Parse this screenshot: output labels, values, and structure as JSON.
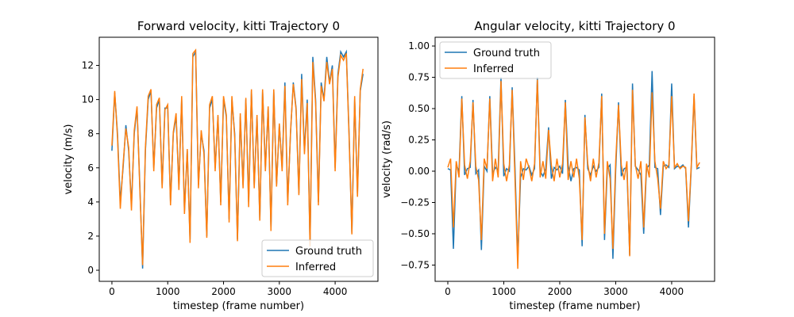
{
  "chart_data": [
    {
      "type": "line",
      "title": "Forward velocity, kitti Trajectory 0",
      "x_label": "timestep (frame number)",
      "y_label": "velocity (m/s)",
      "x": [
        0,
        50,
        100,
        150,
        200,
        250,
        300,
        350,
        400,
        450,
        500,
        550,
        600,
        650,
        700,
        750,
        800,
        850,
        900,
        950,
        1000,
        1050,
        1100,
        1150,
        1200,
        1250,
        1300,
        1350,
        1400,
        1450,
        1500,
        1550,
        1600,
        1650,
        1700,
        1750,
        1800,
        1850,
        1900,
        1950,
        2000,
        2050,
        2100,
        2150,
        2200,
        2250,
        2300,
        2350,
        2400,
        2450,
        2500,
        2550,
        2600,
        2650,
        2700,
        2750,
        2800,
        2850,
        2900,
        2950,
        3000,
        3050,
        3100,
        3150,
        3200,
        3250,
        3300,
        3350,
        3400,
        3450,
        3500,
        3550,
        3600,
        3650,
        3700,
        3750,
        3800,
        3850,
        3900,
        3950,
        4000,
        4050,
        4100,
        4150,
        4200,
        4250,
        4300,
        4350,
        4400,
        4450,
        4500
      ],
      "series": [
        {
          "name": "Ground truth",
          "color": "#1f77b4",
          "values": [
            7,
            10.4,
            8,
            4,
            6,
            8.5,
            7,
            3.8,
            8,
            9.5,
            5,
            0.1,
            7,
            10,
            10.5,
            6,
            9.5,
            10,
            5,
            9.5,
            9.5,
            4,
            8,
            9,
            5,
            10,
            3.5,
            7,
            1.8,
            12.5,
            12.8,
            5,
            8,
            7,
            2,
            9.5,
            10,
            6,
            9,
            4,
            10,
            9,
            3,
            10,
            8,
            1.8,
            9,
            5,
            10,
            4,
            10.5,
            5,
            9,
            3,
            10.5,
            6,
            9.5,
            2.5,
            10.5,
            5,
            8.5,
            6,
            11,
            4,
            8,
            11,
            9.5,
            4.5,
            11.5,
            7,
            10,
            1.5,
            12.5,
            10,
            4,
            11,
            10,
            12.5,
            11,
            12,
            6,
            11.5,
            12.8,
            12.5,
            12.8,
            8,
            2.2,
            10,
            4.5,
            10.5,
            11.5
          ]
        },
        {
          "name": "Inferred",
          "color": "#ff7f0e",
          "values": [
            7.3,
            10.5,
            7.8,
            3.6,
            6.2,
            8.3,
            7.2,
            3.5,
            8.2,
            9.6,
            4.8,
            0.3,
            7.2,
            10.2,
            10.6,
            5.8,
            9.7,
            10.1,
            4.8,
            9.4,
            9.7,
            3.8,
            8.1,
            9.2,
            4.7,
            10.2,
            3.3,
            7.1,
            1.6,
            12.7,
            12.9,
            4.8,
            8.2,
            6.8,
            1.9,
            9.7,
            10.2,
            5.8,
            9.1,
            3.8,
            10.2,
            9.1,
            2.8,
            10.2,
            7.8,
            1.7,
            9.2,
            4.8,
            10.1,
            3.7,
            10.6,
            4.8,
            9.1,
            2.9,
            10.6,
            5.8,
            9.6,
            2.3,
            10.6,
            4.9,
            8.6,
            5.8,
            10.8,
            3.8,
            8.1,
            10.9,
            9.4,
            4.4,
            11.2,
            6.8,
            9.8,
            1.4,
            12.2,
            9.8,
            3.8,
            10.8,
            9.9,
            12.2,
            10.9,
            11.8,
            5.8,
            11.3,
            12.6,
            12.3,
            12.7,
            7.8,
            2.1,
            10.2,
            4.3,
            10.6,
            11.8
          ]
        }
      ],
      "xlim": [
        -227,
        4767
      ],
      "ylim": [
        -0.65,
        13.65
      ],
      "xticks": [
        0,
        1000,
        2000,
        3000,
        4000
      ],
      "yticks": [
        0,
        2,
        4,
        6,
        8,
        10,
        12
      ],
      "legend": "lower right"
    },
    {
      "type": "line",
      "title": "Angular velocity, kitti Trajectory 0",
      "x_label": "timestep (frame number)",
      "y_label": "velocity (rad/s)",
      "x": [
        0,
        50,
        100,
        150,
        200,
        250,
        300,
        350,
        400,
        450,
        500,
        550,
        600,
        650,
        700,
        750,
        800,
        850,
        900,
        950,
        1000,
        1050,
        1100,
        1150,
        1200,
        1250,
        1300,
        1350,
        1400,
        1450,
        1500,
        1550,
        1600,
        1650,
        1700,
        1750,
        1800,
        1850,
        1900,
        1950,
        2000,
        2050,
        2100,
        2150,
        2200,
        2250,
        2300,
        2350,
        2400,
        2450,
        2500,
        2550,
        2600,
        2650,
        2700,
        2750,
        2800,
        2850,
        2900,
        2950,
        3000,
        3050,
        3100,
        3150,
        3200,
        3250,
        3300,
        3350,
        3400,
        3450,
        3500,
        3550,
        3600,
        3650,
        3700,
        3750,
        3800,
        3850,
        3900,
        3950,
        4000,
        4050,
        4100,
        4150,
        4200,
        4250,
        4300,
        4350,
        4400,
        4450,
        4500
      ],
      "series": [
        {
          "name": "Ground truth",
          "color": "#1f77b4",
          "values": [
            0.02,
            0.01,
            -0.62,
            0.05,
            0.0,
            0.6,
            -0.03,
            0.02,
            0.03,
            0.57,
            -0.02,
            0.01,
            -0.63,
            0.04,
            0.0,
            0.6,
            -0.02,
            0.03,
            0.01,
            0.75,
            -0.04,
            0.02,
            0.0,
            0.67,
            0.03,
            -0.7,
            -0.05,
            0.02,
            0.01,
            0.04,
            -0.03,
            0.02,
            0.75,
            0.0,
            -0.04,
            0.02,
            0.35,
            -0.06,
            0.03,
            0.01,
            0.04,
            -0.02,
            0.57,
            0.05,
            -0.08,
            0.02,
            0.03,
            0.01,
            -0.6,
            0.45,
            0.02,
            -0.03,
            0.04,
            0.0,
            0.03,
            0.62,
            -0.55,
            0.02,
            0.05,
            -0.7,
            0.01,
            0.55,
            -0.04,
            0.02,
            0.03,
            -0.67,
            0.7,
            0.04,
            0.01,
            -0.03,
            -0.5,
            0.02,
            0.05,
            0.8,
            0.03,
            0.02,
            -0.35,
            0.04,
            0.05,
            0.03,
            0.7,
            0.02,
            0.04,
            0.03,
            0.05,
            0.02,
            -0.45,
            0.03,
            0.6,
            0.02,
            0.03
          ]
        },
        {
          "name": "Inferred",
          "color": "#ff7f0e",
          "values": [
            0.03,
            0.1,
            -0.45,
            0.08,
            -0.05,
            0.58,
            0.05,
            -0.06,
            0.08,
            0.55,
            0.04,
            -0.07,
            -0.55,
            0.1,
            0.02,
            0.58,
            -0.08,
            0.1,
            -0.05,
            0.72,
            0.06,
            -0.08,
            0.05,
            0.65,
            -0.06,
            -0.78,
            0.08,
            -0.07,
            0.1,
            0.03,
            -0.08,
            0.06,
            0.73,
            -0.05,
            0.08,
            -0.06,
            0.33,
            0.05,
            -0.08,
            0.1,
            -0.05,
            0.06,
            0.55,
            -0.07,
            0.08,
            -0.05,
            0.1,
            -0.06,
            -0.55,
            0.43,
            0.06,
            -0.08,
            0.1,
            -0.05,
            0.07,
            0.6,
            -0.5,
            0.08,
            -0.06,
            -0.62,
            0.08,
            0.53,
            0.05,
            -0.07,
            0.08,
            -0.68,
            0.65,
            0.05,
            -0.06,
            0.08,
            -0.45,
            0.06,
            -0.05,
            0.63,
            0.08,
            -0.06,
            -0.3,
            0.08,
            0.02,
            0.05,
            0.6,
            0.03,
            0.06,
            0.02,
            0.04,
            0.03,
            -0.4,
            0.05,
            0.62,
            0.03,
            0.07
          ]
        }
      ],
      "xlim": [
        -227,
        4767
      ],
      "ylim": [
        -0.88,
        1.07
      ],
      "xticks": [
        0,
        1000,
        2000,
        3000,
        4000
      ],
      "yticks": [
        {
          "value": -0.75,
          "label": "−0.75"
        },
        {
          "value": -0.5,
          "label": "−0.50"
        },
        {
          "value": -0.25,
          "label": "−0.25"
        },
        {
          "value": 0,
          "label": "0.00"
        },
        {
          "value": 0.25,
          "label": "0.25"
        },
        {
          "value": 0.5,
          "label": "0.50"
        },
        {
          "value": 0.75,
          "label": "0.75"
        },
        {
          "value": 1,
          "label": "1.00"
        }
      ],
      "legend": "upper left"
    }
  ]
}
